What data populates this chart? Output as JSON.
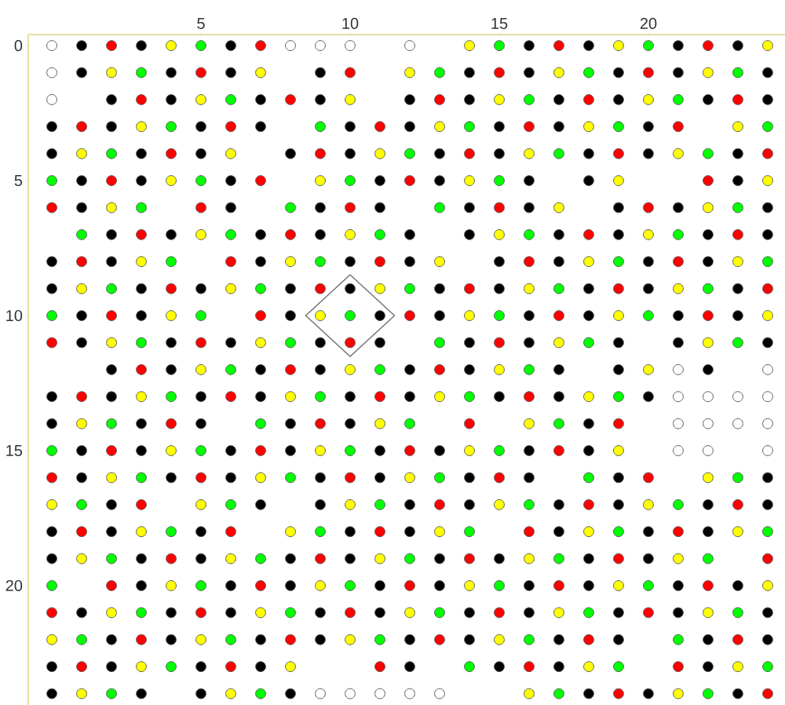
{
  "chart_data": {
    "type": "scatter",
    "marker": "circle",
    "xlim": [
      -0.79,
      24.58
    ],
    "ylim": [
      24.42,
      -0.41
    ],
    "xticks": [
      5,
      10,
      15,
      20
    ],
    "yticks": [
      0,
      5,
      10,
      15,
      20
    ],
    "series": [
      {
        "color": "#000000",
        "x": [
          1,
          3,
          6,
          16,
          18,
          21,
          23,
          1,
          4,
          6,
          9,
          14,
          16,
          19,
          21,
          24,
          2,
          4,
          7,
          9,
          12,
          14,
          17,
          19,
          22,
          24,
          0,
          2,
          5,
          7,
          10,
          12,
          15,
          17,
          20,
          0,
          3,
          5,
          8,
          10,
          13,
          15,
          18,
          20,
          23,
          1,
          3,
          6,
          11,
          13,
          16,
          18,
          23,
          1,
          6,
          9,
          11,
          14,
          16,
          19,
          21,
          24,
          2,
          4,
          7,
          9,
          12,
          14,
          17,
          19,
          22,
          24,
          0,
          2,
          7,
          10,
          12,
          15,
          17,
          20,
          22,
          0,
          3,
          5,
          8,
          10,
          13,
          15,
          18,
          20,
          23,
          1,
          3,
          8,
          11,
          13,
          16,
          18,
          21,
          23,
          1,
          4,
          6,
          9,
          11,
          14,
          16,
          19,
          21,
          24,
          2,
          4,
          7,
          9,
          12,
          14,
          17,
          19,
          22,
          0,
          2,
          5,
          7,
          10,
          12,
          15,
          17,
          20,
          0,
          3,
          5,
          8,
          10,
          18,
          1,
          3,
          6,
          8,
          11,
          13,
          16,
          18,
          1,
          4,
          6,
          9,
          11,
          14,
          16,
          19,
          24,
          2,
          7,
          9,
          12,
          14,
          17,
          19,
          22,
          24,
          0,
          2,
          5,
          10,
          12,
          17,
          20,
          22,
          0,
          3,
          5,
          8,
          10,
          13,
          15,
          18,
          20,
          3,
          6,
          8,
          11,
          13,
          16,
          18,
          21,
          23,
          1,
          4,
          6,
          9,
          11,
          14,
          16,
          19,
          21,
          24,
          2,
          4,
          7,
          9,
          12,
          14,
          17,
          19,
          22,
          24,
          0,
          2,
          5,
          7,
          12,
          15,
          17,
          22,
          0,
          3,
          5,
          8,
          18,
          20,
          23
        ],
        "values": [
          0,
          0,
          0,
          0,
          0,
          0,
          0,
          1,
          1,
          1,
          1,
          1,
          1,
          1,
          1,
          1,
          2,
          2,
          2,
          2,
          2,
          2,
          2,
          2,
          2,
          2,
          3,
          3,
          3,
          3,
          3,
          3,
          3,
          3,
          3,
          4,
          4,
          4,
          4,
          4,
          4,
          4,
          4,
          4,
          4,
          5,
          5,
          5,
          5,
          5,
          5,
          5,
          5,
          6,
          6,
          6,
          6,
          6,
          6,
          6,
          6,
          6,
          7,
          7,
          7,
          7,
          7,
          7,
          7,
          7,
          7,
          7,
          8,
          8,
          8,
          8,
          8,
          8,
          8,
          8,
          8,
          9,
          9,
          9,
          9,
          9,
          9,
          9,
          9,
          9,
          9,
          10,
          10,
          10,
          10,
          10,
          10,
          10,
          10,
          10,
          11,
          11,
          11,
          11,
          11,
          11,
          11,
          11,
          11,
          11,
          12,
          12,
          12,
          12,
          12,
          12,
          12,
          12,
          12,
          13,
          13,
          13,
          13,
          13,
          13,
          13,
          13,
          13,
          14,
          14,
          14,
          14,
          14,
          14,
          15,
          15,
          15,
          15,
          15,
          15,
          15,
          15,
          16,
          16,
          16,
          16,
          16,
          16,
          16,
          16,
          16,
          17,
          17,
          17,
          17,
          17,
          17,
          17,
          17,
          17,
          18,
          18,
          18,
          18,
          18,
          18,
          18,
          18,
          19,
          19,
          19,
          19,
          19,
          19,
          19,
          19,
          19,
          20,
          20,
          20,
          20,
          20,
          20,
          20,
          20,
          20,
          21,
          21,
          21,
          21,
          21,
          21,
          21,
          21,
          21,
          21,
          22,
          22,
          22,
          22,
          22,
          22,
          22,
          22,
          22,
          22,
          23,
          23,
          23,
          23,
          23,
          23,
          23,
          23,
          24,
          24,
          24,
          24,
          24,
          24,
          24
        ]
      },
      {
        "color": "#ff0000",
        "x": [
          2,
          7,
          17,
          22,
          5,
          10,
          15,
          20,
          3,
          8,
          13,
          18,
          23,
          1,
          6,
          11,
          16,
          21,
          4,
          9,
          14,
          19,
          24,
          2,
          7,
          12,
          22,
          0,
          5,
          10,
          15,
          20,
          3,
          8,
          18,
          23,
          1,
          6,
          11,
          16,
          21,
          4,
          9,
          14,
          19,
          24,
          2,
          7,
          12,
          17,
          22,
          0,
          5,
          10,
          15,
          3,
          8,
          13,
          1,
          6,
          11,
          16,
          4,
          9,
          14,
          19,
          2,
          7,
          12,
          17,
          0,
          5,
          10,
          15,
          20,
          3,
          13,
          18,
          23,
          1,
          6,
          11,
          16,
          21,
          4,
          9,
          14,
          19,
          24,
          2,
          7,
          12,
          17,
          22,
          0,
          5,
          10,
          15,
          20,
          3,
          8,
          13,
          18,
          23,
          1,
          6,
          11,
          16,
          21,
          19,
          24
        ],
        "values": [
          0,
          0,
          0,
          0,
          1,
          1,
          1,
          1,
          2,
          2,
          2,
          2,
          2,
          3,
          3,
          3,
          3,
          3,
          4,
          4,
          4,
          4,
          4,
          5,
          5,
          5,
          5,
          6,
          6,
          6,
          6,
          6,
          7,
          7,
          7,
          7,
          8,
          8,
          8,
          8,
          8,
          9,
          9,
          9,
          9,
          9,
          10,
          10,
          10,
          10,
          10,
          11,
          11,
          11,
          11,
          12,
          12,
          12,
          13,
          13,
          13,
          13,
          14,
          14,
          14,
          14,
          15,
          15,
          15,
          15,
          16,
          16,
          16,
          16,
          16,
          17,
          17,
          17,
          17,
          18,
          18,
          18,
          18,
          18,
          19,
          19,
          19,
          19,
          19,
          20,
          20,
          20,
          20,
          20,
          21,
          21,
          21,
          21,
          21,
          22,
          22,
          22,
          22,
          22,
          23,
          23,
          23,
          23,
          23,
          24,
          24
        ]
      },
      {
        "color": "#ffff00",
        "x": [
          4,
          14,
          19,
          24,
          2,
          7,
          12,
          17,
          22,
          5,
          10,
          15,
          20,
          3,
          13,
          18,
          23,
          1,
          6,
          11,
          16,
          21,
          4,
          9,
          14,
          19,
          24,
          2,
          17,
          22,
          5,
          10,
          15,
          20,
          3,
          8,
          13,
          18,
          23,
          1,
          6,
          11,
          16,
          21,
          4,
          9,
          14,
          19,
          24,
          2,
          7,
          17,
          22,
          5,
          10,
          15,
          20,
          3,
          8,
          13,
          18,
          1,
          11,
          16,
          4,
          9,
          14,
          19,
          2,
          7,
          12,
          22,
          0,
          5,
          10,
          15,
          20,
          3,
          8,
          13,
          18,
          23,
          1,
          6,
          11,
          16,
          21,
          4,
          9,
          14,
          19,
          24,
          2,
          7,
          12,
          17,
          22,
          0,
          5,
          10,
          15,
          3,
          8,
          18,
          23,
          1,
          6,
          16,
          21
        ],
        "values": [
          0,
          0,
          0,
          0,
          1,
          1,
          1,
          1,
          1,
          2,
          2,
          2,
          2,
          3,
          3,
          3,
          3,
          4,
          4,
          4,
          4,
          4,
          5,
          5,
          5,
          5,
          5,
          6,
          6,
          6,
          7,
          7,
          7,
          7,
          8,
          8,
          8,
          8,
          8,
          9,
          9,
          9,
          9,
          9,
          10,
          10,
          10,
          10,
          10,
          11,
          11,
          11,
          11,
          12,
          12,
          12,
          12,
          13,
          13,
          13,
          13,
          14,
          14,
          14,
          15,
          15,
          15,
          15,
          16,
          16,
          16,
          16,
          17,
          17,
          17,
          17,
          17,
          18,
          18,
          18,
          18,
          18,
          19,
          19,
          19,
          19,
          19,
          20,
          20,
          20,
          20,
          20,
          21,
          21,
          21,
          21,
          21,
          22,
          22,
          22,
          22,
          23,
          23,
          23,
          23,
          24,
          24,
          24,
          24
        ]
      },
      {
        "color": "#00ff00",
        "x": [
          5,
          15,
          20,
          3,
          13,
          18,
          23,
          6,
          16,
          21,
          4,
          9,
          14,
          19,
          24,
          2,
          12,
          17,
          22,
          0,
          5,
          10,
          15,
          3,
          8,
          13,
          23,
          1,
          6,
          11,
          16,
          21,
          4,
          9,
          19,
          24,
          2,
          7,
          12,
          17,
          22,
          0,
          5,
          10,
          15,
          20,
          3,
          8,
          13,
          18,
          23,
          6,
          11,
          16,
          4,
          9,
          14,
          19,
          2,
          7,
          12,
          17,
          0,
          5,
          10,
          15,
          3,
          8,
          13,
          18,
          23,
          1,
          6,
          11,
          16,
          21,
          4,
          9,
          14,
          19,
          24,
          2,
          7,
          12,
          17,
          22,
          0,
          5,
          10,
          15,
          20,
          3,
          8,
          13,
          18,
          23,
          1,
          6,
          11,
          16,
          21,
          4,
          14,
          19,
          24,
          2,
          7,
          17,
          22
        ],
        "values": [
          0,
          0,
          0,
          1,
          1,
          1,
          1,
          2,
          2,
          2,
          3,
          3,
          3,
          3,
          3,
          4,
          4,
          4,
          4,
          5,
          5,
          5,
          5,
          6,
          6,
          6,
          6,
          7,
          7,
          7,
          7,
          7,
          8,
          8,
          8,
          8,
          9,
          9,
          9,
          9,
          9,
          10,
          10,
          10,
          10,
          10,
          11,
          11,
          11,
          11,
          11,
          12,
          12,
          12,
          13,
          13,
          13,
          13,
          14,
          14,
          14,
          14,
          15,
          15,
          15,
          15,
          16,
          16,
          16,
          16,
          16,
          17,
          17,
          17,
          17,
          17,
          18,
          18,
          18,
          18,
          18,
          19,
          19,
          19,
          19,
          19,
          20,
          20,
          20,
          20,
          20,
          21,
          21,
          21,
          21,
          21,
          22,
          22,
          22,
          22,
          22,
          23,
          23,
          23,
          23,
          24,
          24,
          24,
          24
        ]
      },
      {
        "color": "#ffffff",
        "x": [
          0,
          8,
          9,
          10,
          12,
          0,
          0,
          21,
          24,
          21,
          22,
          23,
          24,
          21,
          22,
          23,
          24,
          21,
          22,
          24,
          9,
          10,
          11,
          12,
          13
        ],
        "values": [
          0,
          0,
          0,
          0,
          0,
          1,
          2,
          12,
          12,
          13,
          13,
          13,
          13,
          14,
          14,
          14,
          14,
          15,
          15,
          15,
          24,
          24,
          24,
          24,
          24
        ]
      },
      {
        "color": "#707070",
        "marker": "diamond",
        "x": [
          10
        ],
        "values": [
          10
        ]
      }
    ]
  }
}
